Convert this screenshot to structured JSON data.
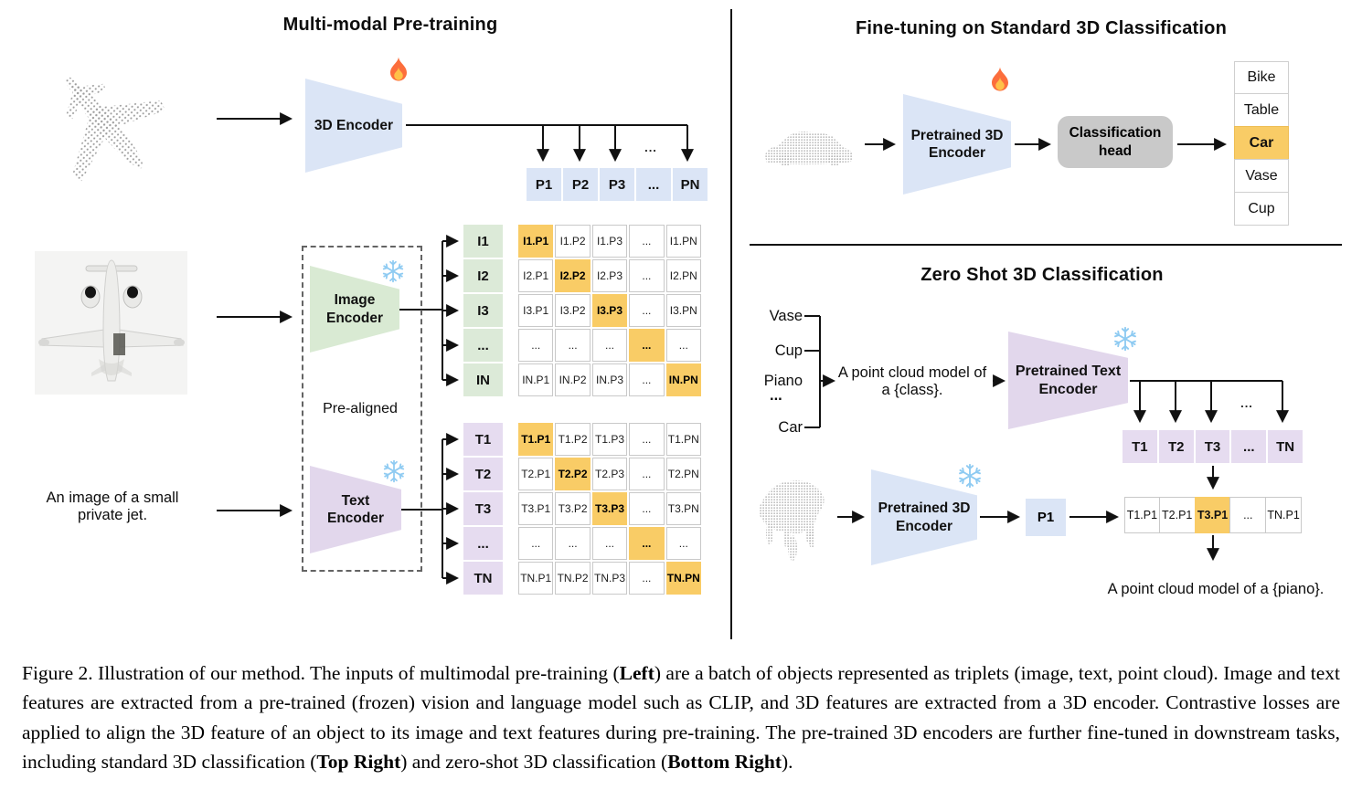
{
  "misc": {
    "ellipsis": "..."
  },
  "colors": {
    "blue": "#dbe5f6",
    "green": "#d9ead3",
    "purple": "#e2d7ec",
    "highlight": "#f9cc66",
    "head_gray": "#c9c9c9"
  },
  "left_panel": {
    "title": "Multi-modal Pre-training",
    "input_text": "An image of a small private jet.",
    "encoder_3d_label": "3D Encoder",
    "image_encoder_label": "Image\nEncoder",
    "text_encoder_label": "Text\nEncoder",
    "prealigned_label": "Pre-aligned",
    "p_row": [
      {
        "t": "P1"
      },
      {
        "t": "P2"
      },
      {
        "t": "P3"
      },
      {
        "t": "..."
      },
      {
        "t": "PN"
      }
    ],
    "i_col": [
      {
        "t": "I1"
      },
      {
        "t": "I2"
      },
      {
        "t": "I3"
      },
      {
        "t": "..."
      },
      {
        "t": "IN"
      }
    ],
    "t_col": [
      {
        "t": "T1"
      },
      {
        "t": "T2"
      },
      {
        "t": "T3"
      },
      {
        "t": "..."
      },
      {
        "t": "TN"
      }
    ],
    "i_matrix": [
      [
        {
          "t": "I1.P1",
          "hl": true
        },
        {
          "t": "I1.P2"
        },
        {
          "t": "I1.P3"
        },
        {
          "t": "..."
        },
        {
          "t": "I1.PN"
        }
      ],
      [
        {
          "t": "I2.P1"
        },
        {
          "t": "I2.P2",
          "hl": true
        },
        {
          "t": "I2.P3"
        },
        {
          "t": "..."
        },
        {
          "t": "I2.PN"
        }
      ],
      [
        {
          "t": "I3.P1"
        },
        {
          "t": "I3.P2"
        },
        {
          "t": "I3.P3",
          "hl": true
        },
        {
          "t": "..."
        },
        {
          "t": "I3.PN"
        }
      ],
      [
        {
          "t": "..."
        },
        {
          "t": "..."
        },
        {
          "t": "..."
        },
        {
          "t": "...",
          "hl": true
        },
        {
          "t": "..."
        }
      ],
      [
        {
          "t": "IN.P1"
        },
        {
          "t": "IN.P2"
        },
        {
          "t": "IN.P3"
        },
        {
          "t": "..."
        },
        {
          "t": "IN.PN",
          "hl": true
        }
      ]
    ],
    "t_matrix": [
      [
        {
          "t": "T1.P1",
          "hl": true
        },
        {
          "t": "T1.P2"
        },
        {
          "t": "T1.P3"
        },
        {
          "t": "..."
        },
        {
          "t": "T1.PN"
        }
      ],
      [
        {
          "t": "T2.P1"
        },
        {
          "t": "T2.P2",
          "hl": true
        },
        {
          "t": "T2.P3"
        },
        {
          "t": "..."
        },
        {
          "t": "T2.PN"
        }
      ],
      [
        {
          "t": "T3.P1"
        },
        {
          "t": "T3.P2"
        },
        {
          "t": "T3.P3",
          "hl": true
        },
        {
          "t": "..."
        },
        {
          "t": "T3.PN"
        }
      ],
      [
        {
          "t": "..."
        },
        {
          "t": "..."
        },
        {
          "t": "..."
        },
        {
          "t": "...",
          "hl": true
        },
        {
          "t": "..."
        }
      ],
      [
        {
          "t": "TN.P1"
        },
        {
          "t": "TN.P2"
        },
        {
          "t": "TN.P3"
        },
        {
          "t": "..."
        },
        {
          "t": "TN.PN",
          "hl": true
        }
      ]
    ]
  },
  "finetune_panel": {
    "title": "Fine-tuning on Standard 3D Classification",
    "encoder_label": "Pretrained 3D\nEncoder",
    "head_label": "Classification\nhead",
    "classes": [
      {
        "t": "Bike"
      },
      {
        "t": "Table"
      },
      {
        "t": "Car",
        "hl": true
      },
      {
        "t": "Vase"
      },
      {
        "t": "Cup"
      }
    ]
  },
  "zeroshot_panel": {
    "title": "Zero Shot 3D Classification",
    "classes": [
      {
        "t": "Vase"
      },
      {
        "t": "Cup"
      },
      {
        "t": "Piano"
      },
      {
        "t": "..."
      },
      {
        "t": "Car"
      }
    ],
    "prompt_text": "A point cloud model of\na {class}.",
    "text_encoder_label": "Pretrained Text\nEncoder",
    "encoder_label": "Pretrained 3D\nEncoder",
    "p1_label": "P1",
    "t_row": [
      {
        "t": "T1"
      },
      {
        "t": "T2"
      },
      {
        "t": "T3"
      },
      {
        "t": "..."
      },
      {
        "t": "TN"
      }
    ],
    "sim_row": [
      {
        "t": "T1.P1"
      },
      {
        "t": "T2.P1"
      },
      {
        "t": "T3.P1",
        "hl": true
      },
      {
        "t": "..."
      },
      {
        "t": "TN.P1"
      }
    ],
    "output_text": "A point cloud model of a {piano}."
  },
  "caption": {
    "segments": [
      {
        "t": "Figure 2. Illustration of our method. The inputs of multimodal pre-training (",
        "b": false
      },
      {
        "t": "Left",
        "b": true
      },
      {
        "t": ") are a batch of objects represented as triplets (image, text, point cloud). Image and text features are extracted from a pre-trained (frozen) vision and language model such as CLIP, and 3D features are extracted from a 3D encoder. Contrastive losses are applied to align the 3D feature of an object to its image and text features during pre-training. The pre-trained 3D encoders are further fine-tuned in downstream tasks, including standard 3D classification (",
        "b": false
      },
      {
        "t": "Top Right",
        "b": true
      },
      {
        "t": ") and zero-shot 3D classification (",
        "b": false
      },
      {
        "t": "Bottom Right",
        "b": true
      },
      {
        "t": ").",
        "b": false
      }
    ]
  }
}
